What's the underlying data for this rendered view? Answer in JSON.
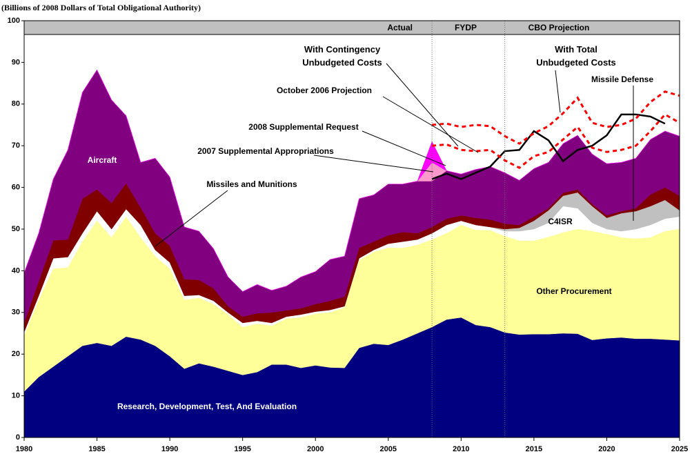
{
  "chart_data": {
    "type": "stacked_area",
    "y_label": "(Billions of 2008 Dollars of Total Obligational Authority)",
    "periods": [
      "Actual",
      "FYDP",
      "CBO Projection"
    ],
    "period_breaks": [
      2008,
      2013
    ],
    "xlim": [
      1980,
      2025
    ],
    "xticks": [
      1980,
      1985,
      1990,
      1995,
      2000,
      2005,
      2010,
      2015,
      2020,
      2025
    ],
    "ylim": [
      0,
      100
    ],
    "yticks": [
      0,
      10,
      20,
      30,
      40,
      50,
      60,
      70,
      80,
      90,
      100
    ],
    "x": [
      1980,
      1981,
      1982,
      1983,
      1984,
      1985,
      1986,
      1987,
      1988,
      1989,
      1990,
      1991,
      1992,
      1993,
      1994,
      1995,
      1996,
      1997,
      1998,
      1999,
      2000,
      2001,
      2002,
      2003,
      2004,
      2005,
      2006,
      2007,
      2008,
      2009,
      2010,
      2011,
      2012,
      2013,
      2014,
      2015,
      2016,
      2017,
      2018,
      2019,
      2020,
      2021,
      2022,
      2023,
      2024,
      2025
    ],
    "series": [
      {
        "name": "Research, Development, Test, And Evaluation",
        "color": "#000080",
        "values": [
          11,
          14.5,
          17,
          19.5,
          22,
          22.7,
          22,
          24.2,
          23.5,
          22,
          19.5,
          16.5,
          17.8,
          17,
          16,
          15,
          15.7,
          17.5,
          17.5,
          16.7,
          17.3,
          16.8,
          16.7,
          21.5,
          22.5,
          22.2,
          23.5,
          25,
          26.5,
          28.3,
          28.8,
          27,
          26.5,
          25.2,
          24.7,
          24.8,
          24.8,
          25,
          24.9,
          23.4,
          23.8,
          24,
          23.7,
          23.7,
          23.5,
          23.3
        ]
      },
      {
        "name": "Other Procurement",
        "color": "#ffff99",
        "values": [
          13.5,
          18.5,
          23.5,
          21.3,
          25,
          29.3,
          26,
          28.8,
          24.5,
          21.5,
          21,
          16.5,
          15.7,
          15,
          13.5,
          11.5,
          11.6,
          9.3,
          11,
          12.1,
          12.4,
          13.2,
          14.5,
          21,
          22,
          23.3,
          22,
          21.2,
          21,
          20.7,
          22.2,
          22.8,
          23.2,
          23.1,
          22.5,
          22.4,
          23.3,
          24.2,
          25.1,
          26.1,
          25,
          24,
          24,
          24.3,
          26,
          26.7
        ]
      },
      {
        "name": "C4ISR",
        "color": "#ffffff",
        "values": [
          0.8,
          1,
          2.5,
          2.5,
          2,
          2.3,
          2,
          1.8,
          3,
          1.5,
          1.5,
          1,
          0.7,
          0.8,
          0.5,
          1,
          0.7,
          0.7,
          0.5,
          0.7,
          0.5,
          0.6,
          0.3,
          0.5,
          0.5,
          1,
          1.5,
          1.3,
          1.5,
          2,
          1,
          1.2,
          0.8,
          1.2,
          2.3,
          2.8,
          3.4,
          6.3,
          5,
          2,
          1.2,
          1.5,
          2.3,
          3,
          3,
          3
        ]
      },
      {
        "name": "Missile Defense",
        "color": "#c0c0c0",
        "values": [
          0,
          0,
          0,
          0,
          0,
          0,
          0,
          0,
          0,
          0,
          0,
          0,
          0,
          0,
          0,
          0,
          0,
          0,
          0,
          0,
          0,
          0,
          0,
          0,
          0,
          0,
          0,
          0,
          0,
          0,
          0,
          0,
          0,
          0.5,
          0.8,
          2,
          3,
          2.5,
          3.8,
          4,
          2.7,
          4.3,
          4.3,
          4.5,
          4.5,
          1.5
        ]
      },
      {
        "name": "Missiles and Munitions",
        "color": "#800000",
        "values": [
          2.2,
          3.5,
          4.3,
          4.2,
          8.3,
          5.2,
          6.3,
          6.2,
          4.2,
          4,
          4,
          4,
          3.6,
          3,
          1.5,
          1.5,
          1.8,
          2.5,
          1.5,
          1.5,
          1.8,
          2.2,
          2.3,
          2.5,
          2,
          2,
          2.3,
          1.5,
          1.5,
          1.5,
          1.3,
          1.7,
          1.8,
          1.3,
          0.7,
          1,
          0.5,
          0.7,
          0.7,
          0.5,
          0.6,
          0.5,
          0.7,
          2.8,
          3,
          3.5
        ]
      },
      {
        "name": "Aircraft",
        "color": "#800080",
        "values": [
          12,
          11.5,
          14.7,
          21.5,
          25.5,
          28.7,
          24.7,
          16.2,
          10.8,
          18,
          16.5,
          12.5,
          11.7,
          9.5,
          7,
          6,
          6.9,
          5.3,
          5.8,
          7.5,
          7.8,
          9.9,
          9.7,
          11.8,
          11.2,
          12.3,
          11.5,
          12.5,
          11,
          11.5,
          9.9,
          11.6,
          12.7,
          12.2,
          10.7,
          11.5,
          11,
          11.8,
          13,
          12,
          12.4,
          11.7,
          12,
          13.2,
          13.5,
          14.3
        ]
      },
      {
        "name": "2007 Supplemental Appropriations",
        "color": "#ff99cc",
        "values": [
          0,
          0,
          0,
          0,
          0,
          0,
          0,
          0,
          0,
          0,
          0,
          0,
          0,
          0,
          0,
          0,
          0,
          0,
          0,
          0,
          0,
          0,
          0,
          0,
          0,
          0,
          0,
          0,
          4.5,
          0,
          0,
          0,
          0,
          0,
          0,
          0,
          0,
          0,
          0,
          0,
          0,
          0,
          0,
          0,
          0,
          0
        ]
      },
      {
        "name": "2008 Supplemental Request",
        "color": "#ff00ff",
        "values": [
          0,
          0,
          0,
          0,
          0,
          0,
          0,
          0,
          0,
          0,
          0,
          0,
          0,
          0,
          0,
          0,
          0,
          0,
          0,
          0,
          0,
          0,
          0,
          0,
          0,
          0,
          0,
          0,
          5,
          0,
          0,
          0,
          0,
          0,
          0,
          0,
          0,
          0,
          0,
          0,
          0,
          0,
          0,
          0,
          0,
          0
        ]
      }
    ],
    "lines": [
      {
        "name": "October 2006 Projection",
        "color": "#000000",
        "dash": false,
        "x": [
          2008,
          2009,
          2010,
          2011,
          2012,
          2013,
          2014,
          2015,
          2016,
          2017,
          2018,
          2019,
          2020,
          2021,
          2022,
          2023,
          2024
        ],
        "values": [
          62,
          63.3,
          62,
          63.5,
          65,
          68.7,
          69,
          73.5,
          71.3,
          66.3,
          69,
          70,
          72.5,
          77.5,
          77.5,
          77,
          75.3
        ]
      },
      {
        "name": "With Contingency Unbudgeted Costs",
        "color": "#ff0000",
        "dash": true,
        "x": [
          2008,
          2009,
          2010,
          2011,
          2012,
          2013,
          2014,
          2015,
          2016,
          2017,
          2018,
          2019,
          2020,
          2021,
          2022,
          2023,
          2024,
          2025
        ],
        "values": [
          70,
          70.3,
          69,
          68.7,
          69,
          66.5,
          64.7,
          67.5,
          68.5,
          71.5,
          74.5,
          69.5,
          68.5,
          69,
          70,
          73.5,
          77.5,
          75.5
        ]
      },
      {
        "name": "With Total Unbudgeted Costs",
        "color": "#ff0000",
        "dash": true,
        "x": [
          2008,
          2009,
          2010,
          2011,
          2012,
          2013,
          2014,
          2015,
          2016,
          2017,
          2018,
          2019,
          2020,
          2021,
          2022,
          2023,
          2024,
          2025
        ],
        "values": [
          75,
          75.3,
          74.5,
          75,
          74.7,
          72.3,
          70.5,
          73,
          74.7,
          77.8,
          81.5,
          75.5,
          74.5,
          75,
          76.5,
          80.5,
          83,
          82
        ]
      }
    ]
  }
}
